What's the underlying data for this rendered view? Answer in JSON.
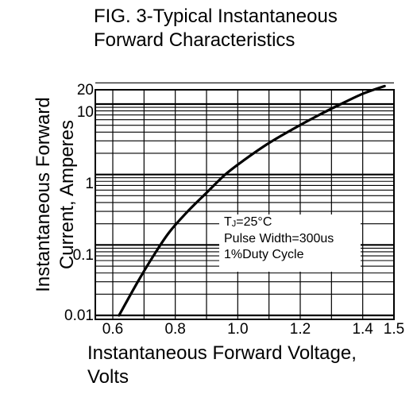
{
  "chart_data": {
    "type": "line",
    "title": [
      "FIG. 3-Typical Instantaneous",
      "Forward Characteristics"
    ],
    "xlabel": [
      "Instantaneous Forward Voltage,",
      "Volts"
    ],
    "ylabel": [
      "Instantaneous Forward",
      "Current, Amperes"
    ],
    "xscale": "linear",
    "yscale": "log",
    "xlim": [
      0.6,
      1.5
    ],
    "ylim": [
      0.01,
      20
    ],
    "x_ticks": [
      "0.6",
      "0.8",
      "1.0",
      "1.2",
      "1.4",
      "1.5"
    ],
    "y_ticks": [
      "0.01",
      "0.1",
      "1",
      "10",
      "20"
    ],
    "grid": true,
    "annotation": {
      "tj_main": "T",
      "tj_sub": "J",
      "tj_value": "=25°C",
      "line2": "Pulse Width=300us",
      "line3": "1%Duty Cycle"
    },
    "series": [
      {
        "x": [
          0.62,
          0.68,
          0.73,
          0.78,
          0.84,
          0.9,
          0.96,
          1.02,
          1.1,
          1.18,
          1.26,
          1.33,
          1.4,
          1.47
        ],
        "y": [
          0.01,
          0.03,
          0.07,
          0.15,
          0.3,
          0.55,
          1.0,
          1.6,
          2.8,
          4.5,
          7.0,
          10,
          14,
          18
        ]
      }
    ]
  }
}
